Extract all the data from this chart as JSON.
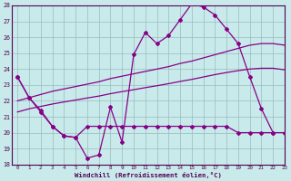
{
  "xlabel": "Windchill (Refroidissement éolien,°C)",
  "x_hours": [
    0,
    1,
    2,
    3,
    4,
    5,
    6,
    7,
    8,
    9,
    10,
    11,
    12,
    13,
    14,
    15,
    16,
    17,
    18,
    19,
    20,
    21,
    22,
    23
  ],
  "windchill": [
    23.5,
    22.2,
    21.3,
    20.4,
    19.8,
    19.7,
    18.4,
    18.6,
    21.6,
    19.4,
    24.9,
    26.3,
    25.6,
    26.1,
    27.1,
    28.1,
    27.9,
    27.4,
    26.5,
    25.6,
    23.5,
    21.5,
    20.0,
    null
  ],
  "line_bottom": [
    23.5,
    22.2,
    21.4,
    20.4,
    19.8,
    19.7,
    20.4,
    20.4,
    20.4,
    20.4,
    20.4,
    20.4,
    20.4,
    20.4,
    20.4,
    20.4,
    20.4,
    20.4,
    20.4,
    20.0,
    20.0,
    20.0,
    20.0,
    20.0
  ],
  "smooth_upper": [
    22.0,
    22.2,
    22.4,
    22.6,
    22.75,
    22.9,
    23.05,
    23.2,
    23.4,
    23.55,
    23.7,
    23.85,
    24.0,
    24.15,
    24.35,
    24.5,
    24.7,
    24.9,
    25.1,
    25.3,
    25.5,
    25.6,
    25.6,
    25.5
  ],
  "smooth_lower": [
    21.3,
    21.5,
    21.65,
    21.8,
    21.93,
    22.05,
    22.18,
    22.3,
    22.45,
    22.58,
    22.7,
    22.83,
    22.95,
    23.08,
    23.22,
    23.35,
    23.5,
    23.65,
    23.78,
    23.9,
    24.0,
    24.05,
    24.05,
    23.95
  ],
  "ylim": [
    18,
    28
  ],
  "xlim": [
    -0.5,
    23
  ],
  "color": "#880088",
  "bg_color": "#c8eaea",
  "grid_color": "#99bbbb"
}
